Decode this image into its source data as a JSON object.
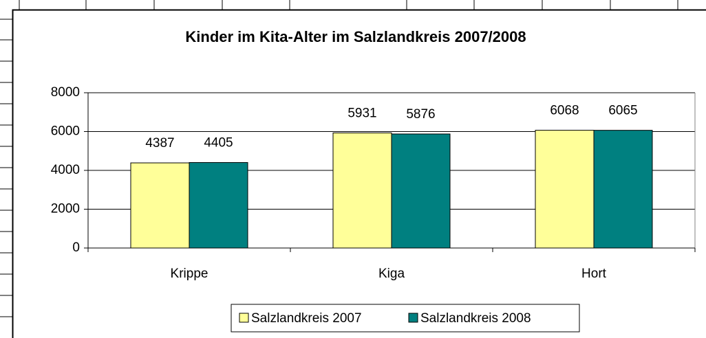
{
  "chart_data": {
    "type": "bar",
    "title": "Kinder im Kita-Alter im Salzlandkreis 2007/2008",
    "categories": [
      "Krippe",
      "Kiga",
      "Hort"
    ],
    "series": [
      {
        "name": "Salzlandkreis 2007",
        "color": "#ffff99",
        "values": [
          4387,
          5931,
          6068
        ]
      },
      {
        "name": "Salzlandkreis 2008",
        "color": "#008080",
        "values": [
          4405,
          5876,
          6065
        ]
      }
    ],
    "ylim": [
      0,
      8000
    ],
    "yticks": [
      0,
      2000,
      4000,
      6000,
      8000
    ],
    "grid": true,
    "legend": "bottom"
  }
}
